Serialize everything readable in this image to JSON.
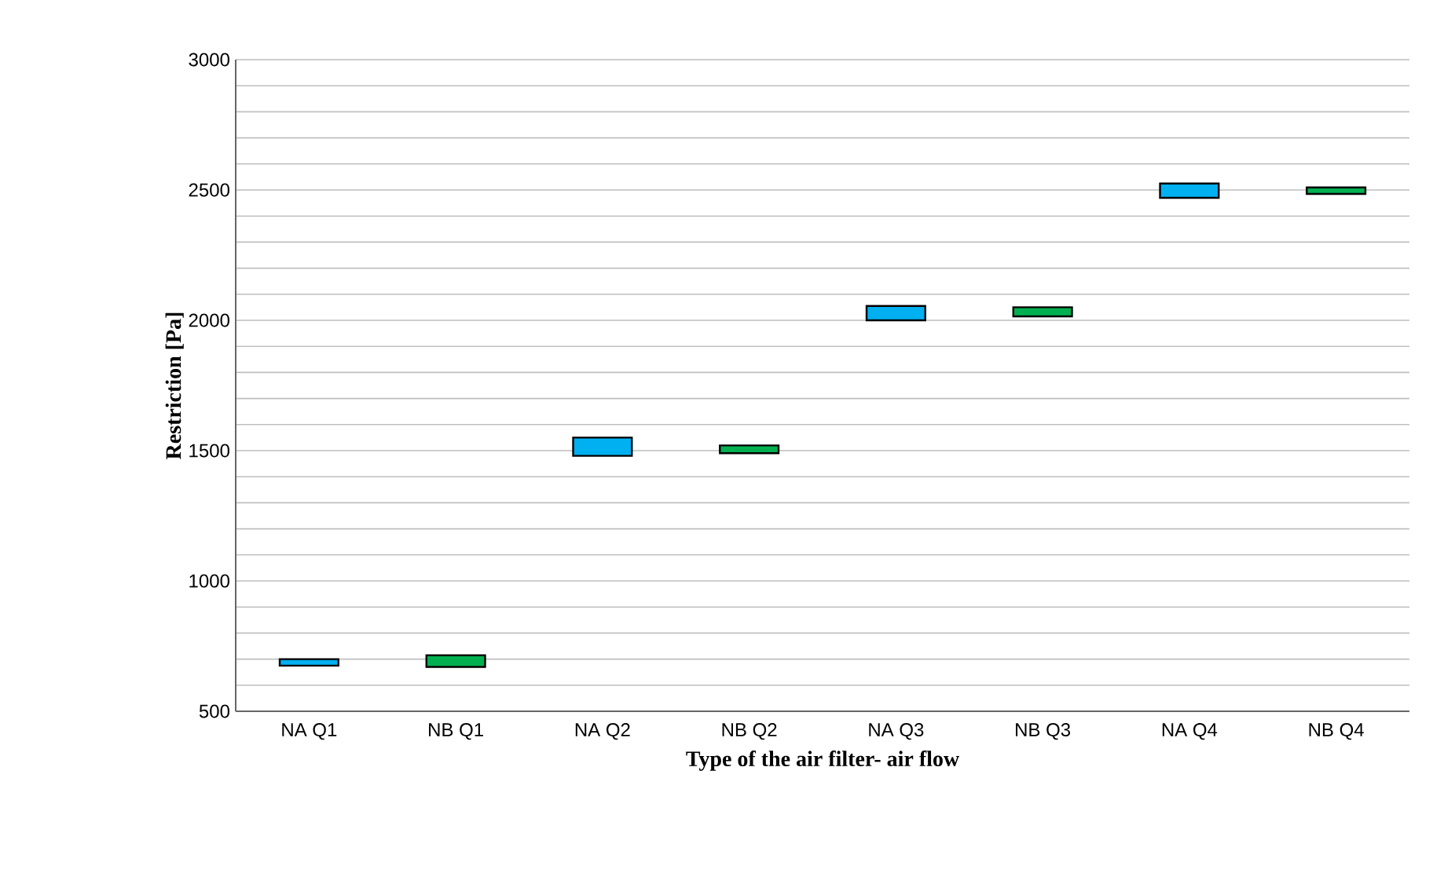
{
  "chart_data": {
    "type": "bar",
    "xlabel": "Type of the air filter- air flow",
    "ylabel": "Restriction [Pa]",
    "categories": [
      "NA Q1",
      "NB Q1",
      "NA Q2",
      "NB Q2",
      "NA Q3",
      "NB Q3",
      "NA Q4",
      "NB Q4"
    ],
    "base": [
      675,
      670,
      1480,
      1490,
      2000,
      2015,
      2470,
      2485
    ],
    "values": [
      25,
      45,
      70,
      30,
      55,
      35,
      55,
      25
    ],
    "colors": [
      "#00b0f0",
      "#00b050",
      "#00b0f0",
      "#00b050",
      "#00b0f0",
      "#00b050",
      "#00b0f0",
      "#00b050"
    ],
    "ylim": [
      500,
      3000
    ],
    "yticks": [
      500,
      {
        "value": 600,
        "label": null
      },
      {
        "value": 700,
        "label": null
      },
      {
        "value": 800,
        "label": null
      },
      {
        "value": 900,
        "label": null
      },
      1000,
      {
        "value": 1100,
        "label": null
      },
      {
        "value": 1200,
        "label": null
      },
      {
        "value": 1300,
        "label": null
      },
      {
        "value": 1400,
        "label": null
      },
      1500,
      {
        "value": 1600,
        "label": null
      },
      {
        "value": 1700,
        "label": null
      },
      {
        "value": 1800,
        "label": null
      },
      {
        "value": 1900,
        "label": null
      },
      2000,
      {
        "value": 2100,
        "label": null
      },
      {
        "value": 2200,
        "label": null
      },
      {
        "value": 2300,
        "label": null
      },
      {
        "value": 2400,
        "label": null
      },
      2500,
      {
        "value": 2600,
        "label": null
      },
      {
        "value": 2700,
        "label": null
      },
      {
        "value": 2800,
        "label": null
      },
      {
        "value": 2900,
        "label": null
      },
      3000
    ],
    "grid": "y"
  }
}
